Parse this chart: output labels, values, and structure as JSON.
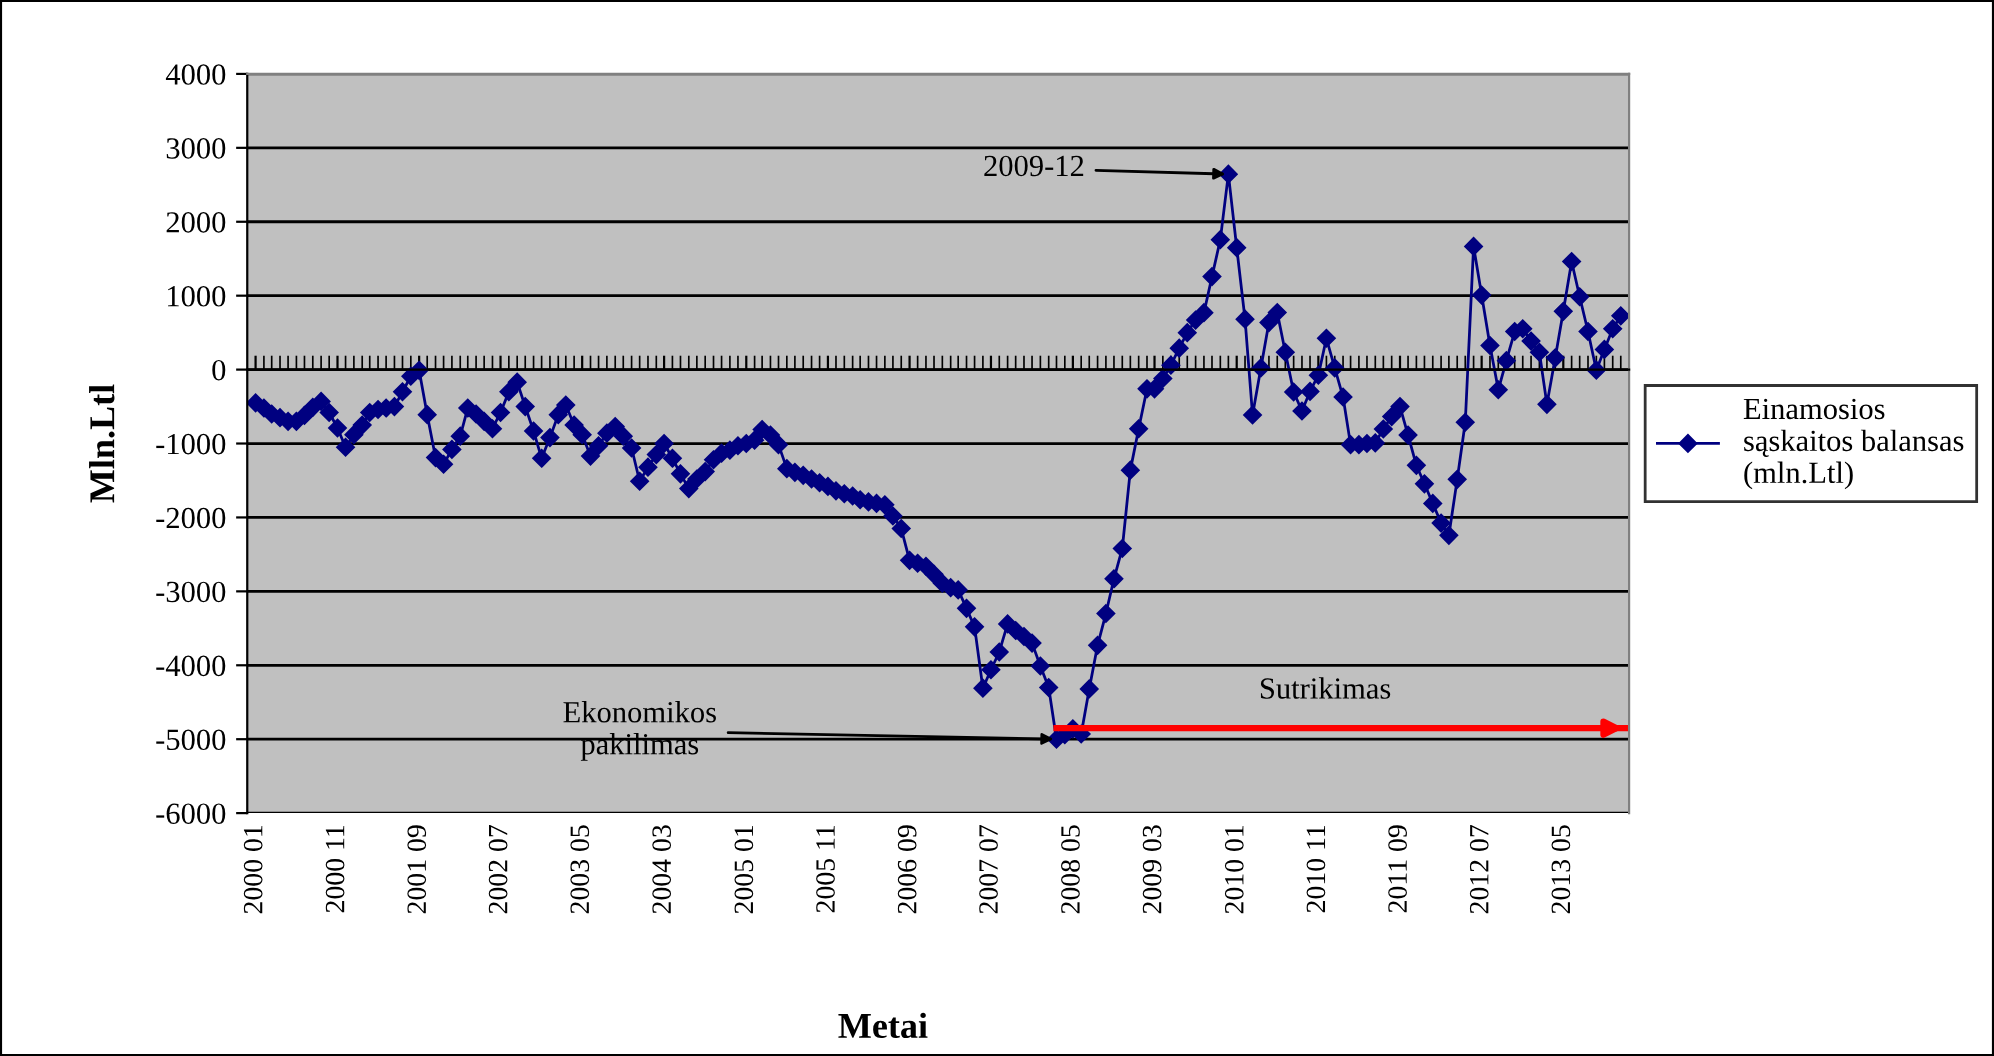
{
  "chart_data": {
    "type": "line",
    "xlabel": "Metai",
    "ylabel": "Mln.Ltl",
    "x": [
      "2000-01",
      "2000-02",
      "2000-03",
      "2000-04",
      "2000-05",
      "2000-06",
      "2000-07",
      "2000-08",
      "2000-09",
      "2000-10",
      "2000-11",
      "2000-12",
      "2001-01",
      "2001-02",
      "2001-03",
      "2001-04",
      "2001-05",
      "2001-06",
      "2001-07",
      "2001-08",
      "2001-09",
      "2001-10",
      "2001-11",
      "2001-12",
      "2002-01",
      "2002-02",
      "2002-03",
      "2002-04",
      "2002-05",
      "2002-06",
      "2002-07",
      "2002-08",
      "2002-09",
      "2002-10",
      "2002-11",
      "2002-12",
      "2003-01",
      "2003-02",
      "2003-03",
      "2003-04",
      "2003-05",
      "2003-06",
      "2003-07",
      "2003-08",
      "2003-09",
      "2003-10",
      "2003-11",
      "2003-12",
      "2004-01",
      "2004-02",
      "2004-03",
      "2004-04",
      "2004-05",
      "2004-06",
      "2004-07",
      "2004-08",
      "2004-09",
      "2004-10",
      "2004-11",
      "2004-12",
      "2005-01",
      "2005-02",
      "2005-03",
      "2005-04",
      "2005-05",
      "2005-06",
      "2005-07",
      "2005-08",
      "2005-09",
      "2005-10",
      "2005-11",
      "2005-12",
      "2006-01",
      "2006-02",
      "2006-03",
      "2006-04",
      "2006-05",
      "2006-06",
      "2006-07",
      "2006-08",
      "2006-09",
      "2006-10",
      "2006-11",
      "2006-12",
      "2007-01",
      "2007-02",
      "2007-03",
      "2007-04",
      "2007-05",
      "2007-06",
      "2007-07",
      "2007-08",
      "2007-09",
      "2007-10",
      "2007-11",
      "2007-12",
      "2008-01",
      "2008-02",
      "2008-03",
      "2008-04",
      "2008-05",
      "2008-06",
      "2008-07",
      "2008-08",
      "2008-09",
      "2008-10",
      "2008-11",
      "2008-12",
      "2009-01",
      "2009-02",
      "2009-03",
      "2009-04",
      "2009-05",
      "2009-06",
      "2009-07",
      "2009-08",
      "2009-09",
      "2009-10",
      "2009-11",
      "2009-12",
      "2010-01",
      "2010-02",
      "2010-03",
      "2010-04",
      "2010-05",
      "2010-06",
      "2010-07",
      "2010-08",
      "2010-09",
      "2010-10",
      "2010-11",
      "2010-12",
      "2011-01",
      "2011-02",
      "2011-03",
      "2011-04",
      "2011-05",
      "2011-06",
      "2011-07",
      "2011-08",
      "2011-09",
      "2011-10",
      "2011-11",
      "2011-12",
      "2012-01",
      "2012-02",
      "2012-03",
      "2012-04",
      "2012-05",
      "2012-06",
      "2012-07",
      "2012-08",
      "2012-09",
      "2012-10",
      "2012-11",
      "2012-12",
      "2013-01",
      "2013-02",
      "2013-03",
      "2013-04",
      "2013-05",
      "2013-06",
      "2013-07",
      "2013-08",
      "2013-09",
      "2013-10",
      "2013-11",
      "2013-12"
    ],
    "series": [
      {
        "name": "Einamosios\nsąskaitos balansas\n(mln.Ltl)",
        "color": "#000080",
        "values": [
          -450,
          -520,
          -600,
          -650,
          -700,
          -700,
          -620,
          -510,
          -430,
          -580,
          -790,
          -1050,
          -880,
          -750,
          -580,
          -540,
          -520,
          -500,
          -300,
          -90,
          -10,
          -610,
          -1190,
          -1280,
          -1080,
          -900,
          -520,
          -600,
          -700,
          -800,
          -580,
          -300,
          -170,
          -500,
          -830,
          -1200,
          -920,
          -610,
          -480,
          -750,
          -880,
          -1170,
          -1030,
          -860,
          -770,
          -900,
          -1060,
          -1510,
          -1320,
          -1150,
          -1000,
          -1200,
          -1410,
          -1610,
          -1480,
          -1380,
          -1220,
          -1130,
          -1090,
          -1030,
          -1000,
          -955,
          -810,
          -885,
          -1015,
          -1340,
          -1390,
          -1430,
          -1480,
          -1530,
          -1580,
          -1640,
          -1680,
          -1710,
          -1760,
          -1790,
          -1810,
          -1830,
          -1980,
          -2150,
          -2580,
          -2620,
          -2660,
          -2770,
          -2890,
          -2950,
          -2980,
          -3230,
          -3480,
          -4310,
          -4060,
          -3820,
          -3440,
          -3530,
          -3610,
          -3700,
          -4010,
          -4300,
          -5000,
          -4940,
          -4860,
          -4930,
          -4320,
          -3730,
          -3300,
          -2830,
          -2420,
          -1360,
          -800,
          -260,
          -260,
          -120,
          60,
          290,
          500,
          670,
          770,
          1258,
          1758,
          2644,
          1650,
          682,
          -614,
          23,
          636,
          773,
          235,
          -303,
          -560,
          -295,
          -76,
          424,
          23,
          -371,
          -1015,
          -1015,
          -1000,
          -992,
          -803,
          -636,
          -500,
          -886,
          -1295,
          -1545,
          -1810,
          -2076,
          -2242,
          -1485,
          -712,
          1667,
          1008,
          326,
          -273,
          121,
          515,
          553,
          386,
          235,
          -470,
          159,
          788,
          1462,
          985,
          515,
          -8,
          273,
          553,
          727
        ]
      }
    ],
    "marker": "diamond",
    "line_style": "solid",
    "xlim": [
      "1999-12",
      "2014-01"
    ],
    "xticks": [
      {
        "value": "2000-01",
        "label": "2000 01"
      },
      {
        "value": "2000-11",
        "label": "2000 11"
      },
      {
        "value": "2001-09",
        "label": "2001 09"
      },
      {
        "value": "2002-07",
        "label": "2002 07"
      },
      {
        "value": "2003-05",
        "label": "2003 05"
      },
      {
        "value": "2004-03",
        "label": "2004 03"
      },
      {
        "value": "2005-01",
        "label": "2005 01"
      },
      {
        "value": "2005-11",
        "label": "2005 11"
      },
      {
        "value": "2006-09",
        "label": "2006 09"
      },
      {
        "value": "2007-07",
        "label": "2007 07"
      },
      {
        "value": "2008-05",
        "label": "2008 05"
      },
      {
        "value": "2009-03",
        "label": "2009 03"
      },
      {
        "value": "2010-01",
        "label": "2010 01"
      },
      {
        "value": "2010-11",
        "label": "2010 11"
      },
      {
        "value": "2011-09",
        "label": "2011 09"
      },
      {
        "value": "2012-07",
        "label": "2012 07"
      },
      {
        "value": "2013-05",
        "label": "2013 05"
      }
    ],
    "ylim": [
      -6000,
      4000
    ],
    "yticks": [
      -6000,
      -5000,
      -4000,
      -3000,
      -2000,
      -1000,
      0,
      1000,
      2000,
      3000,
      4000
    ],
    "grid": "y",
    "legend": "right",
    "annotations": [
      {
        "text": "2009-12",
        "x": "2009-12",
        "y": 2644
      },
      {
        "text": "Ekonomikos\npakilimas",
        "x": "2008-03",
        "y": -5000
      },
      "Sutrikimas"
    ],
    "ref_lines": [
      {
        "axis": "y",
        "value": -4850,
        "color": "#ff0000",
        "line_style": "solid"
      }
    ]
  }
}
